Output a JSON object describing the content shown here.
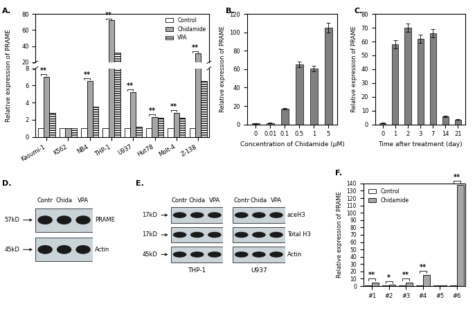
{
  "chart_data": [
    {
      "label": "A.",
      "type": "bar",
      "ylabel": "Relative expression of PRAME",
      "categories": [
        "Kasumi-1",
        "K562",
        "NB4",
        "THP-1",
        "U937",
        "Hut78",
        "Molt-4",
        "Z-138"
      ],
      "series": [
        {
          "name": "Control",
          "color": "#ffffff",
          "values": [
            1,
            1,
            1,
            1,
            1,
            1,
            1,
            1
          ]
        },
        {
          "name": "Chidamide",
          "color": "#a6a6a6",
          "values": [
            7,
            1,
            6.5,
            72,
            5.2,
            2.3,
            2.8,
            31
          ]
        },
        {
          "name": "VPA",
          "color": "#ffffff",
          "values": [
            2.8,
            1,
            3.5,
            32,
            1.2,
            2.2,
            2.2,
            6.5
          ]
        }
      ],
      "ylim": [
        [
          0,
          8
        ],
        [
          20,
          80
        ]
      ],
      "yticks": [
        [
          0,
          2,
          4,
          6,
          8
        ],
        [
          20,
          40,
          60,
          80
        ]
      ],
      "legend": "upper right",
      "annotations": [
        {
          "category": "Kasumi-1",
          "text": "**"
        },
        {
          "category": "NB4",
          "text": "**"
        },
        {
          "category": "THP-1",
          "text": "**"
        },
        {
          "category": "U937",
          "text": "**"
        },
        {
          "category": "Hut78",
          "text": "**"
        },
        {
          "category": "Molt-4",
          "text": "**"
        },
        {
          "category": "Z-138",
          "text": "**"
        }
      ]
    },
    {
      "label": "B.",
      "type": "bar",
      "xlabel": "Concentration of Chidamide (μM)",
      "ylabel": "Relative expression of PRAME",
      "categories": [
        "0",
        "0.01",
        "0.1",
        "0.5",
        "1",
        "5"
      ],
      "values": [
        1,
        1.5,
        17,
        65,
        61,
        105
      ],
      "errors": [
        0.5,
        0.5,
        1,
        3,
        3,
        5
      ],
      "color": "#808080",
      "ylim": [
        0,
        120
      ],
      "yticks": [
        0,
        20,
        40,
        60,
        80,
        100,
        120
      ]
    },
    {
      "label": "C.",
      "type": "bar",
      "xlabel": "Time after treatment (day)",
      "ylabel": "Relative expression of PRAME",
      "categories": [
        "0",
        "1",
        "2",
        "3",
        "7",
        "14",
        "21"
      ],
      "values": [
        1,
        58,
        70,
        62,
        66,
        6,
        3.5
      ],
      "errors": [
        0.3,
        3,
        3,
        3,
        3,
        0.5,
        0.4
      ],
      "color": "#808080",
      "ylim": [
        0,
        80
      ],
      "yticks": [
        0,
        10,
        20,
        30,
        40,
        50,
        60,
        70,
        80
      ]
    },
    {
      "label": "F.",
      "type": "bar",
      "ylabel": "Relative expression of PRAME",
      "categories": [
        "#1",
        "#2",
        "#3",
        "#4",
        "#5",
        "#6"
      ],
      "series": [
        {
          "name": "Control",
          "color": "#ffffff",
          "values": [
            1,
            1,
            1,
            1,
            1,
            1
          ]
        },
        {
          "name": "Chidamide",
          "color": "#a6a6a6",
          "values": [
            5,
            1.5,
            4.5,
            15.5,
            0.8,
            138
          ]
        }
      ],
      "ylim": [
        0,
        140
      ],
      "yticks": [
        0,
        10,
        20,
        30,
        40,
        50,
        60,
        70,
        80,
        90,
        100,
        110,
        120,
        130,
        140
      ],
      "legend": "upper left",
      "annotations": [
        {
          "category": "#1",
          "text": "**"
        },
        {
          "category": "#2",
          "text": "*"
        },
        {
          "category": "#3",
          "text": "**"
        },
        {
          "category": "#4",
          "text": "**"
        },
        {
          "category": "#6",
          "text": "**"
        }
      ]
    }
  ],
  "blots": [
    {
      "label": "D.",
      "lanes": [
        "Contr",
        "Chida",
        "VPA"
      ],
      "names": [],
      "rows": [
        {
          "size": "57kD",
          "protein": "PRAME"
        },
        {
          "size": "45kD",
          "protein": "Actin"
        }
      ]
    },
    {
      "label": "E.",
      "lanes": [
        "Contr",
        "Chida",
        "VPA"
      ],
      "names": [
        "THP-1",
        "U937"
      ],
      "rows": [
        {
          "size": "17kD",
          "protein": "aceH3"
        },
        {
          "size": "17kD",
          "protein": "Total H3"
        },
        {
          "size": "45kD",
          "protein": "Actin"
        }
      ]
    }
  ]
}
